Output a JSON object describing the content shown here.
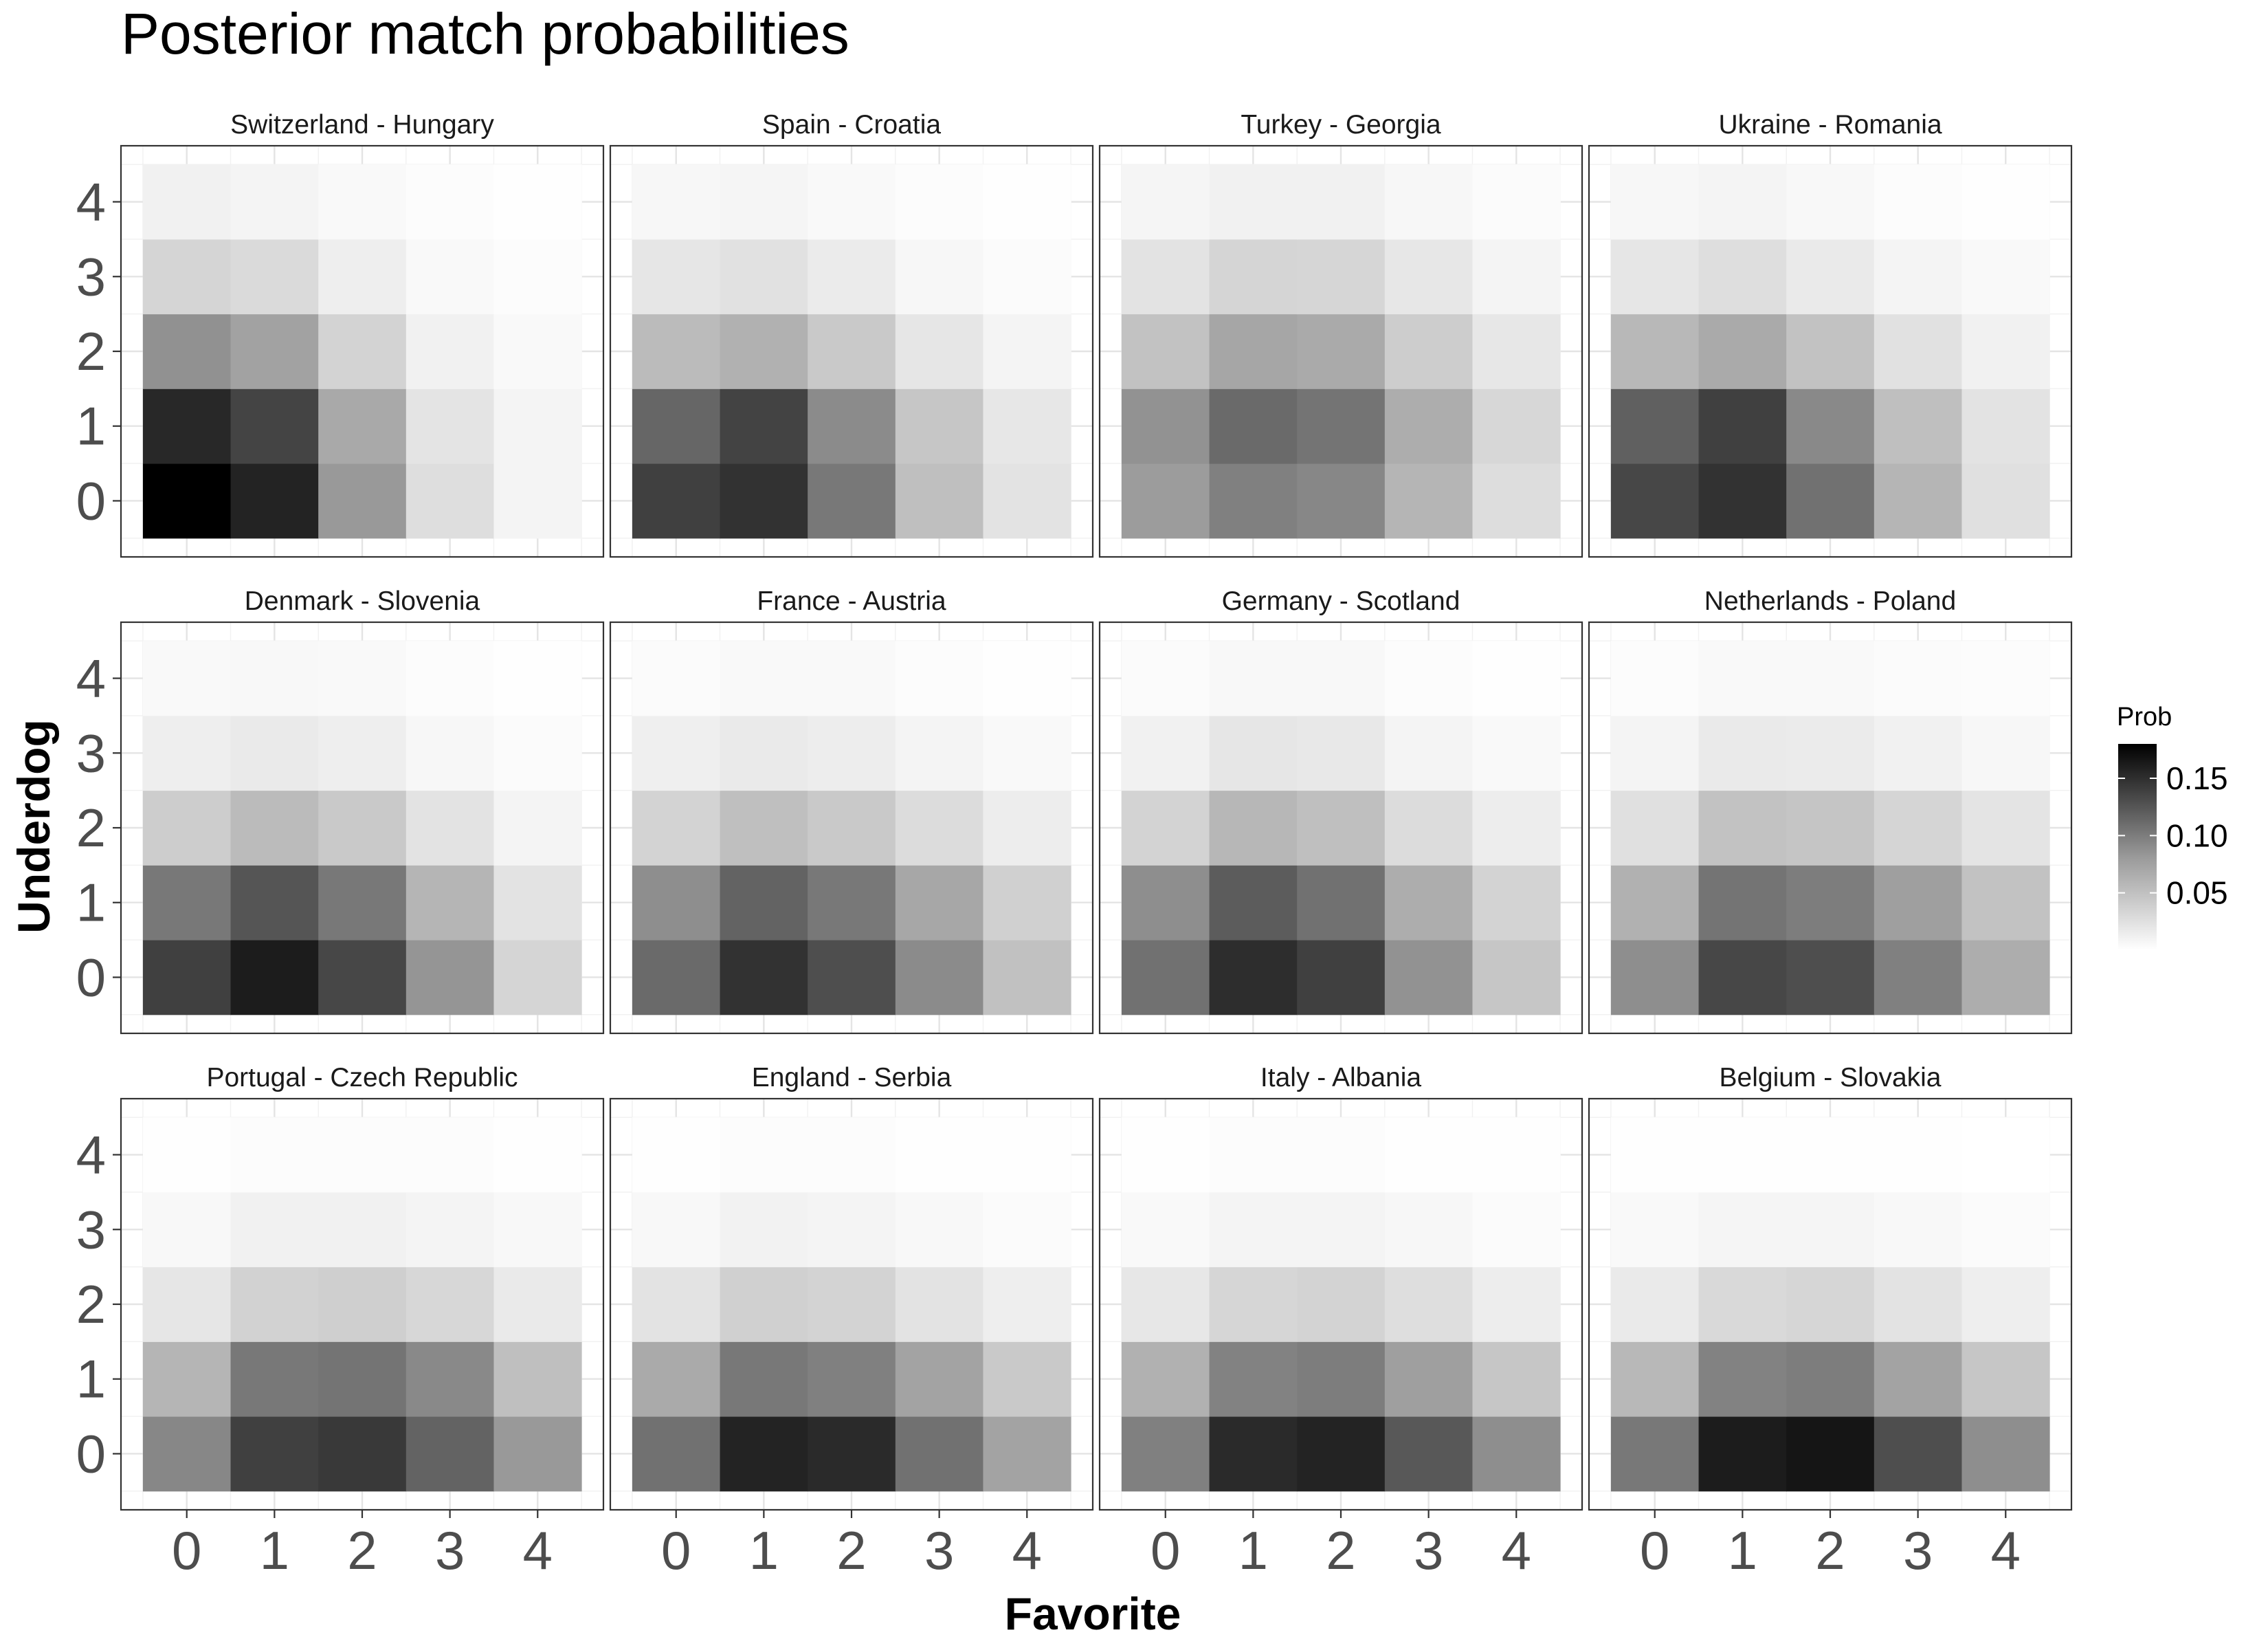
{
  "chart_data": {
    "type": "heatmap",
    "title": "Posterior match probabilities",
    "xlabel": "Favorite",
    "ylabel": "Underdog",
    "x_ticks": [
      0,
      1,
      2,
      3,
      4
    ],
    "y_ticks": [
      0,
      1,
      2,
      3,
      4
    ],
    "grid": true,
    "facet_layout": "3 rows x 4 columns",
    "legend": {
      "title": "Prob",
      "position": "right",
      "ticks": [
        0.05,
        0.1,
        0.15
      ],
      "tick_labels": [
        "0.05",
        "0.10",
        "0.15"
      ],
      "range": [
        0.0,
        0.18
      ],
      "color_low": "#ffffff",
      "color_high": "#000000"
    },
    "note": "Values indexed as values[underdog][favorite]; underdog rows 0-4, favorite columns 0-4. Values estimated from grayscale shading.",
    "facets": [
      {
        "label": "Switzerland - Hungary",
        "values": [
          [
            0.18,
            0.155,
            0.072,
            0.023,
            0.008
          ],
          [
            0.152,
            0.132,
            0.061,
            0.019,
            0.008
          ],
          [
            0.078,
            0.066,
            0.031,
            0.01,
            0.004
          ],
          [
            0.03,
            0.026,
            0.012,
            0.004,
            0.002
          ],
          [
            0.01,
            0.008,
            0.004,
            0.002,
            0.001
          ]
        ]
      },
      {
        "label": "Spain - Croatia",
        "values": [
          [
            0.135,
            0.145,
            0.095,
            0.045,
            0.02
          ],
          [
            0.108,
            0.133,
            0.082,
            0.04,
            0.017
          ],
          [
            0.048,
            0.055,
            0.038,
            0.018,
            0.008
          ],
          [
            0.018,
            0.021,
            0.014,
            0.006,
            0.003
          ],
          [
            0.006,
            0.007,
            0.004,
            0.002,
            0.001
          ]
        ]
      },
      {
        "label": "Turkey - Georgia",
        "values": [
          [
            0.07,
            0.09,
            0.085,
            0.052,
            0.024
          ],
          [
            0.077,
            0.105,
            0.098,
            0.058,
            0.028
          ],
          [
            0.043,
            0.063,
            0.06,
            0.035,
            0.017
          ],
          [
            0.02,
            0.03,
            0.029,
            0.017,
            0.008
          ],
          [
            0.007,
            0.01,
            0.01,
            0.006,
            0.003
          ]
        ]
      },
      {
        "label": "Ukraine - Romania",
        "values": [
          [
            0.13,
            0.145,
            0.1,
            0.052,
            0.022
          ],
          [
            0.112,
            0.135,
            0.083,
            0.045,
            0.02
          ],
          [
            0.05,
            0.06,
            0.043,
            0.021,
            0.01
          ],
          [
            0.018,
            0.023,
            0.015,
            0.008,
            0.004
          ],
          [
            0.006,
            0.008,
            0.005,
            0.002,
            0.001
          ]
        ]
      },
      {
        "label": "Denmark - Slovenia",
        "values": [
          [
            0.135,
            0.16,
            0.13,
            0.075,
            0.03
          ],
          [
            0.095,
            0.12,
            0.095,
            0.052,
            0.02
          ],
          [
            0.035,
            0.048,
            0.038,
            0.02,
            0.008
          ],
          [
            0.012,
            0.015,
            0.012,
            0.006,
            0.003
          ],
          [
            0.004,
            0.005,
            0.004,
            0.002,
            0.001
          ]
        ]
      },
      {
        "label": "France - Austria",
        "values": [
          [
            0.105,
            0.145,
            0.125,
            0.082,
            0.044
          ],
          [
            0.08,
            0.11,
            0.095,
            0.062,
            0.033
          ],
          [
            0.031,
            0.045,
            0.038,
            0.025,
            0.013
          ],
          [
            0.011,
            0.015,
            0.013,
            0.008,
            0.004
          ],
          [
            0.003,
            0.004,
            0.004,
            0.002,
            0.001
          ]
        ]
      },
      {
        "label": "Germany - Scotland",
        "values": [
          [
            0.1,
            0.148,
            0.135,
            0.077,
            0.04
          ],
          [
            0.08,
            0.115,
            0.1,
            0.058,
            0.031
          ],
          [
            0.031,
            0.051,
            0.045,
            0.025,
            0.013
          ],
          [
            0.01,
            0.018,
            0.016,
            0.008,
            0.004
          ],
          [
            0.003,
            0.005,
            0.005,
            0.002,
            0.001
          ]
        ]
      },
      {
        "label": "Netherlands - Poland",
        "values": [
          [
            0.08,
            0.13,
            0.125,
            0.09,
            0.058
          ],
          [
            0.055,
            0.098,
            0.092,
            0.068,
            0.043
          ],
          [
            0.022,
            0.043,
            0.041,
            0.03,
            0.019
          ],
          [
            0.008,
            0.015,
            0.014,
            0.01,
            0.006
          ],
          [
            0.002,
            0.004,
            0.004,
            0.003,
            0.002
          ]
        ]
      },
      {
        "label": "Portugal - Czech Republic",
        "values": [
          [
            0.085,
            0.135,
            0.14,
            0.11,
            0.072
          ],
          [
            0.052,
            0.095,
            0.098,
            0.083,
            0.045
          ],
          [
            0.018,
            0.032,
            0.034,
            0.028,
            0.015
          ],
          [
            0.005,
            0.01,
            0.01,
            0.008,
            0.005
          ],
          [
            0.001,
            0.002,
            0.002,
            0.002,
            0.001
          ]
        ]
      },
      {
        "label": "England - Serbia",
        "values": [
          [
            0.1,
            0.155,
            0.15,
            0.1,
            0.065
          ],
          [
            0.06,
            0.095,
            0.09,
            0.065,
            0.038
          ],
          [
            0.02,
            0.033,
            0.031,
            0.02,
            0.012
          ],
          [
            0.005,
            0.009,
            0.008,
            0.005,
            0.003
          ],
          [
            0.001,
            0.002,
            0.002,
            0.001,
            0.001
          ]
        ]
      },
      {
        "label": "Italy - Albania",
        "values": [
          [
            0.09,
            0.15,
            0.155,
            0.118,
            0.08
          ],
          [
            0.055,
            0.088,
            0.092,
            0.068,
            0.04
          ],
          [
            0.017,
            0.029,
            0.031,
            0.023,
            0.013
          ],
          [
            0.004,
            0.008,
            0.008,
            0.006,
            0.003
          ],
          [
            0.001,
            0.002,
            0.002,
            0.001,
            0.001
          ]
        ]
      },
      {
        "label": "Belgium - Slovakia",
        "values": [
          [
            0.095,
            0.16,
            0.165,
            0.125,
            0.08
          ],
          [
            0.05,
            0.088,
            0.092,
            0.065,
            0.04
          ],
          [
            0.015,
            0.027,
            0.029,
            0.02,
            0.012
          ],
          [
            0.004,
            0.007,
            0.007,
            0.005,
            0.003
          ],
          [
            0.001,
            0.001,
            0.001,
            0.001,
            0.0
          ]
        ]
      }
    ]
  }
}
